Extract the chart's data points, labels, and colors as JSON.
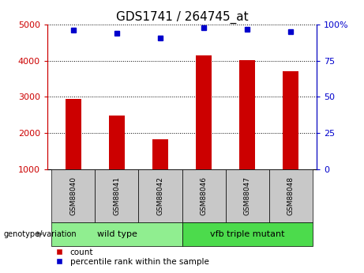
{
  "title": "GDS1741 / 264745_at",
  "categories": [
    "GSM88040",
    "GSM88041",
    "GSM88042",
    "GSM88046",
    "GSM88047",
    "GSM88048"
  ],
  "bar_values": [
    2950,
    2480,
    1820,
    4150,
    4020,
    3720
  ],
  "bar_base": 1000,
  "percentile_values": [
    96,
    94,
    91,
    98,
    97,
    95
  ],
  "bar_color": "#cc0000",
  "dot_color": "#0000cc",
  "ylim_left": [
    1000,
    5000
  ],
  "ylim_right": [
    0,
    100
  ],
  "yticks_left": [
    1000,
    2000,
    3000,
    4000,
    5000
  ],
  "yticks_right": [
    0,
    25,
    50,
    75,
    100
  ],
  "grid_lines": [
    2000,
    3000,
    4000
  ],
  "groups": [
    {
      "label": "wild type",
      "indices": [
        0,
        1,
        2
      ],
      "color": "#90ee90"
    },
    {
      "label": "vfb triple mutant",
      "indices": [
        3,
        4,
        5
      ],
      "color": "#4cdb4c"
    }
  ],
  "group_label_prefix": "genotype/variation",
  "legend_count_label": "count",
  "legend_percentile_label": "percentile rank within the sample",
  "tick_label_area_color": "#c8c8c8",
  "background_color": "#ffffff",
  "plot_bg_color": "#ffffff",
  "title_fontsize": 11,
  "tick_fontsize": 8,
  "bar_width": 0.35
}
